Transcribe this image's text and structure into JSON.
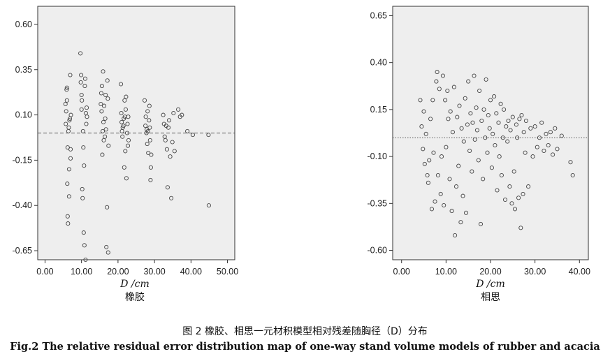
{
  "figure": {
    "caption_cn": "图 2    橡胶、相思一元材积模型相对残差随胸径（D）分布",
    "caption_en": "Fig.2    The relative residual error distribution map of one-way stand volume models of rubber and acacia"
  },
  "chart_data": [
    {
      "type": "scatter",
      "title": "橡胶",
      "xlabel": "D /cm",
      "ylabel": "",
      "xlim": [
        -2,
        52
      ],
      "ylim": [
        -0.7,
        0.7
      ],
      "xticks": [
        "0.00",
        "10.00",
        "20.00",
        "30.00",
        "40.00",
        "50.00"
      ],
      "yticks": [
        "0.60",
        "0.35",
        "0.10",
        "-0.15",
        "-0.40",
        "-0.65"
      ],
      "reference_line": 0.0,
      "x": [
        5.6,
        5.7,
        5.8,
        5.9,
        6.0,
        6.0,
        6.1,
        6.2,
        6.2,
        6.3,
        6.4,
        6.5,
        6.6,
        6.6,
        6.7,
        6.8,
        6.9,
        7.0,
        7.0,
        7.1,
        9.7,
        9.8,
        9.9,
        10.0,
        10.0,
        10.1,
        10.2,
        10.3,
        10.4,
        10.5,
        10.6,
        10.7,
        10.8,
        10.9,
        11.0,
        11.1,
        11.2,
        11.3,
        11.4,
        11.5,
        15.3,
        15.4,
        15.5,
        15.6,
        15.7,
        15.8,
        15.9,
        16.0,
        16.1,
        16.2,
        16.4,
        16.5,
        16.6,
        16.7,
        16.8,
        17.0,
        17.1,
        17.2,
        17.3,
        17.4,
        20.8,
        20.9,
        21.0,
        21.1,
        21.2,
        21.3,
        21.5,
        21.6,
        21.7,
        21.8,
        21.9,
        22.0,
        22.1,
        22.2,
        22.3,
        22.5,
        22.6,
        22.7,
        22.8,
        22.9,
        27.3,
        27.5,
        27.6,
        27.8,
        27.9,
        28.0,
        28.1,
        28.2,
        28.3,
        28.5,
        28.6,
        28.7,
        28.8,
        28.9,
        29.0,
        29.1,
        32.4,
        32.6,
        32.8,
        33.0,
        33.2,
        33.4,
        33.6,
        33.8,
        34.0,
        34.3,
        34.6,
        34.9,
        35.2,
        35.5,
        36.5,
        37.0,
        37.5,
        39.0,
        40.5,
        44.8,
        44.9
      ],
      "y": [
        0.16,
        0.05,
        0.12,
        0.24,
        0.25,
        0.18,
        -0.28,
        -0.08,
        -0.46,
        -0.5,
        0.01,
        0.03,
        -0.35,
        -0.2,
        0.07,
        0.08,
        0.32,
        -0.09,
        -0.14,
        0.1,
        0.44,
        0.28,
        0.32,
        0.13,
        0.21,
        0.18,
        -0.31,
        -0.36,
        0.01,
        -0.08,
        -0.55,
        -0.18,
        -0.62,
        0.26,
        0.3,
        -0.7,
        0.11,
        0.05,
        0.14,
        0.09,
        0.16,
        0.22,
        0.12,
        0.26,
        -0.12,
        0.01,
        0.34,
        0.06,
        -0.04,
        0.15,
        -0.02,
        0.08,
        0.21,
        0.02,
        -0.63,
        -0.41,
        0.29,
        0.19,
        -0.66,
        -0.07,
        0.27,
        0.11,
        0.06,
        0.01,
        -0.02,
        0.03,
        0.04,
        0.08,
        -0.19,
        0.18,
        0.09,
        -0.1,
        0.13,
        0.2,
        -0.25,
        0.0,
        0.05,
        -0.07,
        0.09,
        -0.04,
        0.18,
        0.04,
        0.09,
        0.0,
        0.02,
        -0.06,
        0.12,
        0.01,
        -0.11,
        0.07,
        0.15,
        0.03,
        -0.04,
        -0.26,
        -0.19,
        -0.12,
        0.1,
        0.05,
        -0.02,
        -0.04,
        0.04,
        -0.09,
        -0.3,
        0.03,
        0.07,
        -0.13,
        -0.36,
        -0.05,
        0.11,
        -0.1,
        0.13,
        0.09,
        0.1,
        0.01,
        -0.01,
        -0.01,
        -0.4
      ]
    },
    {
      "type": "scatter",
      "title": "相思",
      "xlabel": "D /cm",
      "ylabel": "",
      "xlim": [
        -2,
        42
      ],
      "ylim": [
        -0.65,
        0.7
      ],
      "xticks": [
        "0.00",
        "10.00",
        "20.00",
        "30.00",
        "40.00"
      ],
      "yticks": [
        "0.65",
        "0.40",
        "0.15",
        "-0.10",
        "-0.35",
        "-0.60"
      ],
      "reference_line": 0.0,
      "x": [
        4.2,
        4.5,
        4.8,
        5.0,
        5.2,
        5.5,
        5.8,
        6.0,
        6.2,
        6.5,
        6.8,
        7.0,
        7.2,
        7.5,
        7.8,
        8.0,
        8.2,
        8.5,
        8.8,
        9.0,
        9.3,
        9.5,
        9.8,
        10.0,
        10.3,
        10.5,
        10.8,
        11.0,
        11.3,
        11.5,
        11.8,
        12.0,
        12.3,
        12.5,
        12.8,
        13.0,
        13.3,
        13.5,
        13.8,
        14.0,
        14.3,
        14.5,
        14.8,
        15.0,
        15.3,
        15.5,
        15.8,
        16.0,
        16.3,
        16.5,
        16.8,
        17.0,
        17.3,
        17.5,
        17.8,
        18.0,
        18.3,
        18.5,
        18.8,
        19.0,
        19.3,
        19.5,
        19.8,
        20.0,
        20.3,
        20.5,
        20.8,
        21.0,
        21.3,
        21.5,
        21.8,
        22.0,
        22.3,
        22.5,
        22.8,
        23.0,
        23.3,
        23.5,
        23.8,
        24.0,
        24.3,
        24.5,
        24.8,
        25.0,
        25.3,
        25.5,
        25.8,
        26.0,
        26.3,
        26.5,
        26.8,
        27.0,
        27.3,
        27.5,
        27.8,
        28.0,
        28.5,
        29.0,
        29.5,
        30.0,
        30.5,
        31.0,
        31.5,
        32.0,
        32.5,
        33.0,
        33.5,
        34.0,
        34.5,
        35.0,
        36.0,
        38.0,
        38.5
      ],
      "y": [
        0.2,
        0.06,
        -0.06,
        0.14,
        -0.14,
        0.02,
        -0.2,
        -0.24,
        -0.12,
        0.1,
        -0.38,
        0.2,
        -0.08,
        -0.34,
        0.3,
        0.35,
        -0.2,
        0.26,
        -0.3,
        -0.1,
        0.33,
        -0.36,
        0.2,
        -0.05,
        0.25,
        0.1,
        -0.22,
        0.14,
        -0.39,
        0.03,
        0.27,
        -0.52,
        -0.26,
        0.11,
        -0.15,
        0.17,
        -0.45,
        0.05,
        -0.31,
        -0.02,
        0.21,
        -0.4,
        0.07,
        0.3,
        -0.07,
        0.13,
        -0.18,
        0.08,
        0.33,
        -0.01,
        0.16,
        0.04,
        -0.12,
        0.25,
        -0.46,
        0.09,
        -0.22,
        0.15,
        0.0,
        0.31,
        -0.08,
        0.12,
        0.05,
        0.2,
        -0.16,
        0.02,
        0.22,
        -0.04,
        0.13,
        -0.28,
        0.08,
        -0.1,
        0.18,
        -0.2,
        0.0,
        0.15,
        -0.33,
        0.06,
        -0.02,
        0.09,
        -0.26,
        0.04,
        -0.35,
        0.11,
        -0.18,
        -0.38,
        0.07,
        0.0,
        -0.32,
        0.1,
        -0.48,
        0.12,
        -0.3,
        0.03,
        -0.08,
        0.09,
        -0.26,
        0.05,
        -0.1,
        0.06,
        -0.05,
        0.0,
        0.08,
        -0.07,
        0.02,
        -0.04,
        0.03,
        -0.09,
        0.05,
        -0.06,
        0.01,
        -0.13,
        -0.2
      ]
    }
  ]
}
